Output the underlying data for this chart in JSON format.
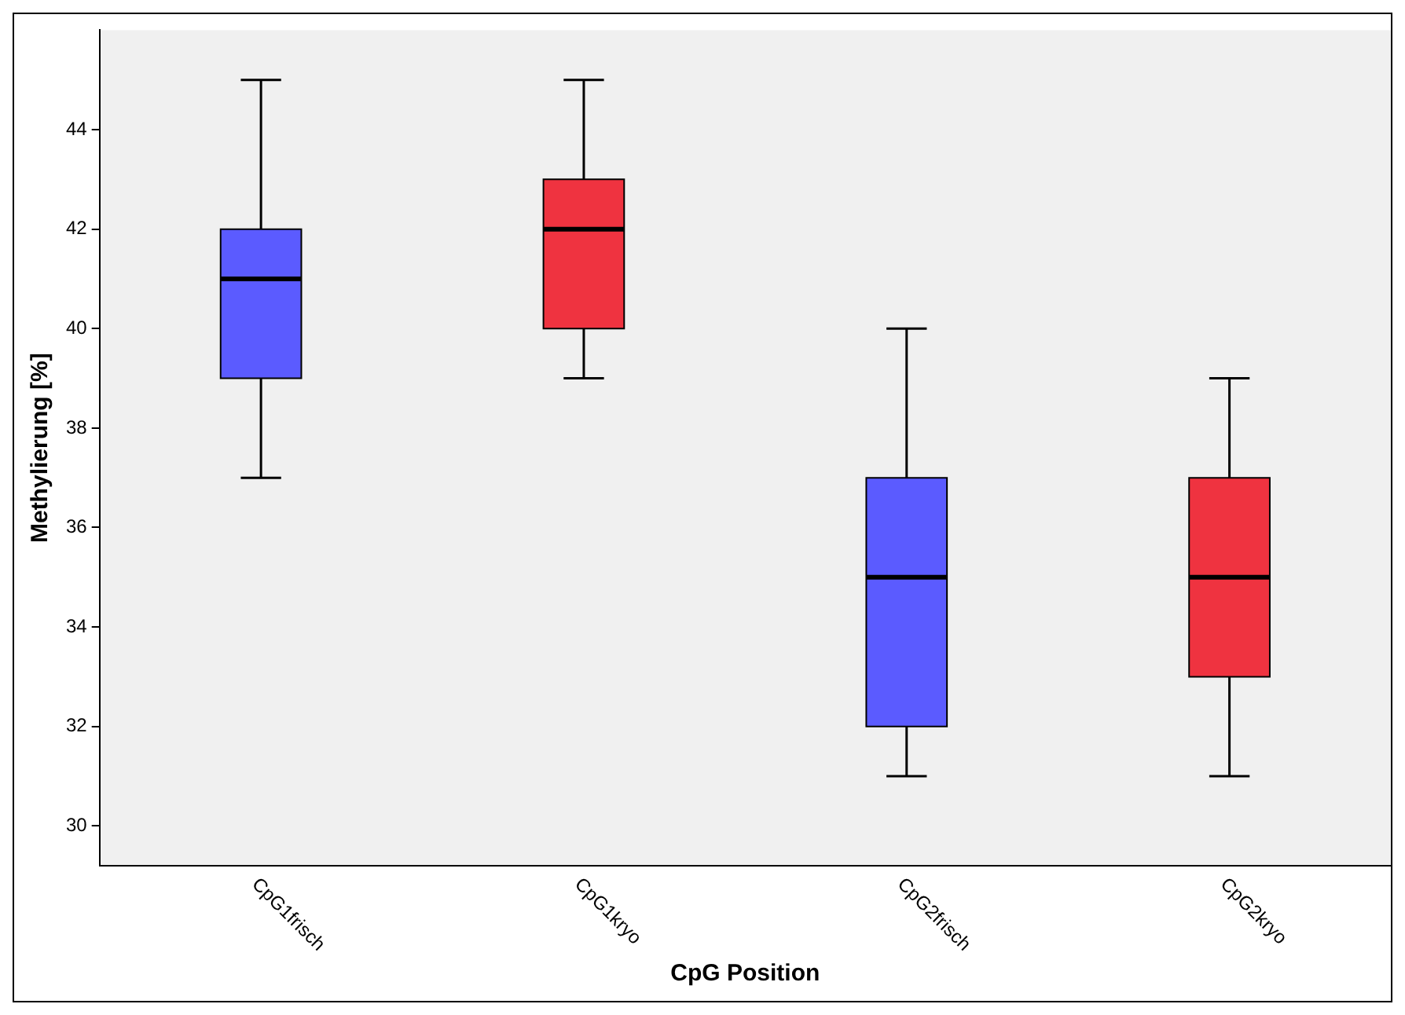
{
  "chart_data": {
    "type": "box",
    "xlabel": "CpG Position",
    "ylabel": "Methylierung [%]",
    "categories": [
      "CpG1frisch",
      "CpG1kryo",
      "CpG2frisch",
      "CpG2kryo"
    ],
    "colors": [
      "#5b5bff",
      "#ef3340",
      "#5b5bff",
      "#ef3340"
    ],
    "boxes": [
      {
        "low": 37,
        "q1": 39,
        "median": 41,
        "q3": 42,
        "high": 45
      },
      {
        "low": 39,
        "q1": 40,
        "median": 42,
        "q3": 43,
        "high": 45
      },
      {
        "low": 31,
        "q1": 32,
        "median": 35,
        "q3": 37,
        "high": 40
      },
      {
        "low": 31,
        "q1": 33,
        "median": 35,
        "q3": 37,
        "high": 39
      }
    ],
    "ylim": [
      29.2,
      46
    ],
    "yticks": [
      30,
      32,
      34,
      36,
      38,
      40,
      42,
      44
    ],
    "grid": false,
    "legend": false
  }
}
